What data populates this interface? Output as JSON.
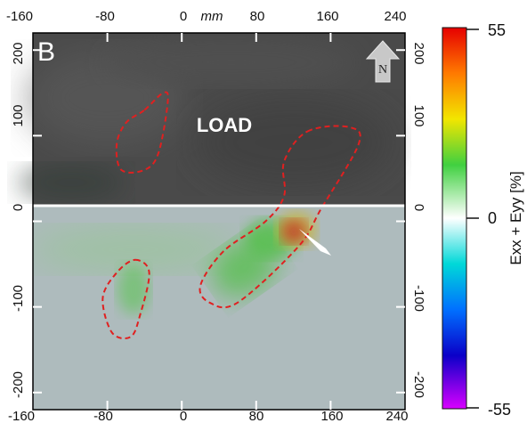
{
  "panel_label": "B",
  "load_label": "LOAD",
  "north_label": "N",
  "unit_label": "mm",
  "colorbar": {
    "label": "Exx + Eyy [%]",
    "max_label": "55",
    "mid_label": "0",
    "min_label": "-55",
    "max": 55,
    "min": -55
  },
  "colors": {
    "frame": "#000000",
    "load_region": "#4a4a4a",
    "lower_region": "#aebbbd",
    "outline": "#e02020",
    "divider": "#ffffff"
  },
  "chart_data": {
    "type": "heatmap",
    "xlim": [
      -160,
      240
    ],
    "ylim": [
      -220,
      220
    ],
    "x_ticks": [
      -160,
      -80,
      0,
      80,
      160,
      240
    ],
    "y_ticks": [
      200,
      100,
      0,
      -100,
      -200
    ],
    "top_tick_labels": [
      "-160",
      "-80",
      "0",
      "mm",
      "80",
      "160",
      "240"
    ],
    "bottom_tick_labels": [
      "-160",
      "-80",
      "0",
      "80",
      "160",
      "240"
    ],
    "left_tick_labels": [
      "200",
      "100",
      "0",
      "-100",
      "-200"
    ],
    "right_tick_labels": [
      "200",
      "100",
      "0",
      "-100",
      "-200"
    ],
    "load_boundary_y": 0,
    "dashed_outlines": [
      {
        "name": "upper-left",
        "points": [
          [
            -40,
            130
          ],
          [
            -20,
            150
          ],
          [
            -15,
            140
          ],
          [
            -25,
            80
          ],
          [
            -40,
            60
          ],
          [
            -65,
            60
          ],
          [
            -70,
            90
          ],
          [
            -60,
            115
          ]
        ]
      },
      {
        "name": "diagonal",
        "points": [
          [
            135,
            105
          ],
          [
            180,
            110
          ],
          [
            190,
            90
          ],
          [
            150,
            15
          ],
          [
            125,
            -30
          ],
          [
            60,
            -95
          ],
          [
            30,
            -95
          ],
          [
            20,
            -75
          ],
          [
            45,
            -35
          ],
          [
            90,
            0
          ],
          [
            110,
            30
          ],
          [
            110,
            70
          ]
        ]
      },
      {
        "name": "lower-left",
        "points": [
          [
            -50,
            -45
          ],
          [
            -35,
            -60
          ],
          [
            -45,
            -110
          ],
          [
            -55,
            -135
          ],
          [
            -75,
            -130
          ],
          [
            -85,
            -90
          ],
          [
            -70,
            -60
          ]
        ]
      }
    ],
    "strain_hotspots": [
      {
        "x": 125,
        "y": -25,
        "value": 50
      },
      {
        "x": 95,
        "y": -45,
        "value": 20
      },
      {
        "x": 60,
        "y": -75,
        "value": 15
      },
      {
        "x": -60,
        "y": -95,
        "value": 12
      },
      {
        "x": -130,
        "y": -40,
        "value": 8
      }
    ]
  }
}
